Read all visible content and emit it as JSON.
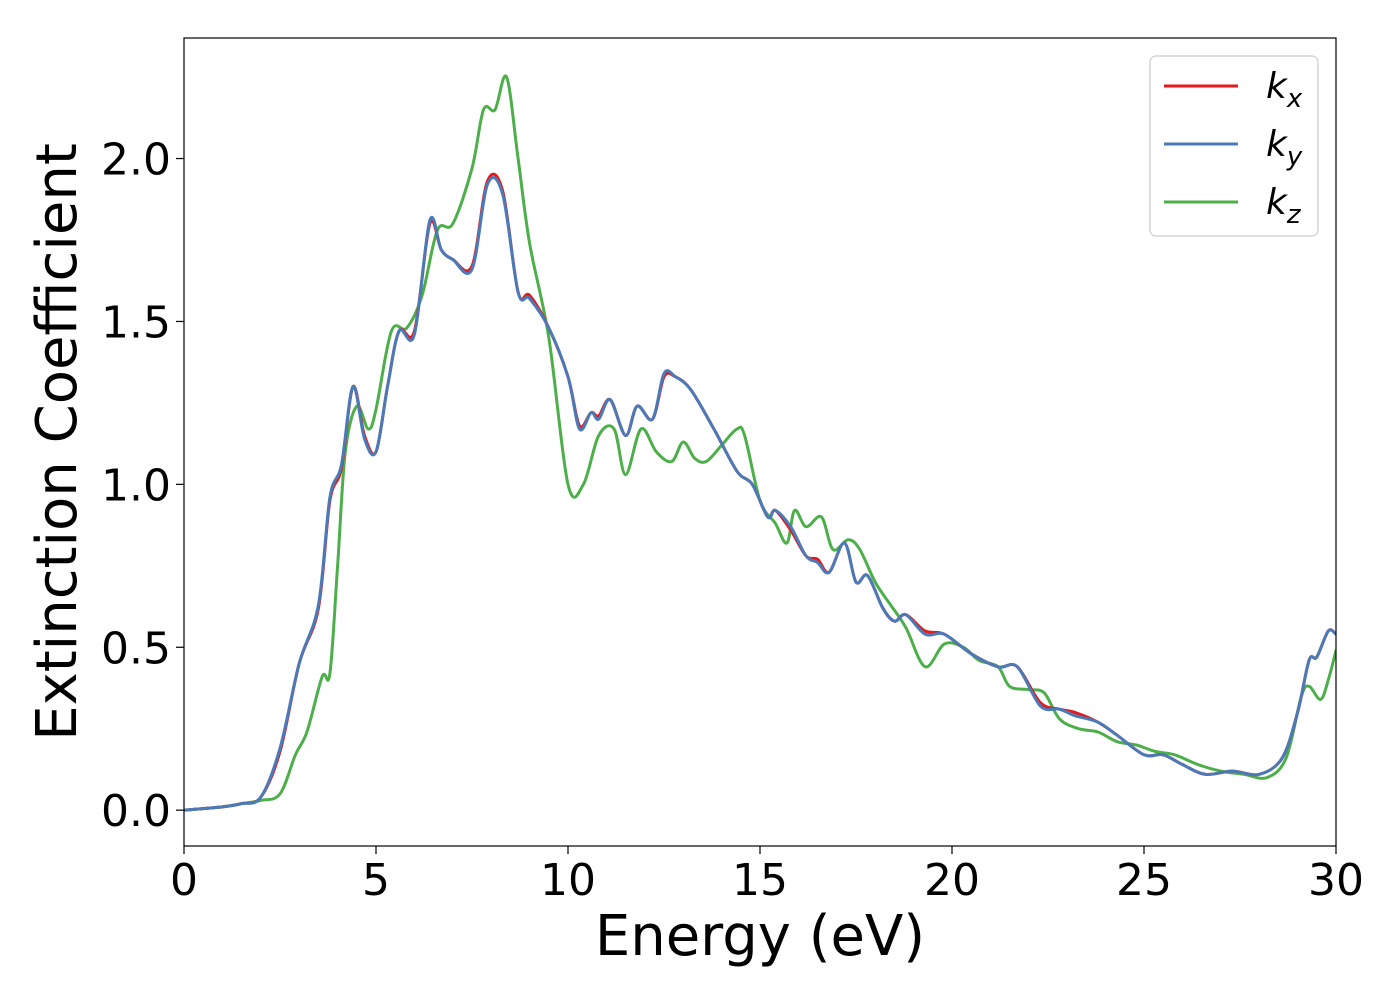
{
  "chart_data": {
    "type": "line",
    "xlabel": "Energy (eV)",
    "ylabel": "Extinction Coefficient",
    "xlim": [
      0,
      30
    ],
    "ylim": [
      -0.11,
      2.37
    ],
    "xticks": [
      0,
      5,
      10,
      15,
      20,
      25,
      30
    ],
    "xtick_labels": [
      "0",
      "5",
      "10",
      "15",
      "20",
      "25",
      "30"
    ],
    "yticks": [
      0.0,
      0.5,
      1.0,
      1.5,
      2.0
    ],
    "ytick_labels": [
      "0.0",
      "0.5",
      "1.0",
      "1.5",
      "2.0"
    ],
    "grid": false,
    "legend_position": "top-right",
    "series": [
      {
        "name": "k_x",
        "base": "k",
        "sub": "x",
        "color": "#e41a1c",
        "points": [
          [
            0,
            0
          ],
          [
            1,
            0.01
          ],
          [
            1.5,
            0.02
          ],
          [
            2,
            0.04
          ],
          [
            2.5,
            0.18
          ],
          [
            3,
            0.45
          ],
          [
            3.5,
            0.62
          ],
          [
            3.8,
            0.95
          ],
          [
            4.1,
            1.05
          ],
          [
            4.4,
            1.3
          ],
          [
            4.7,
            1.15
          ],
          [
            5,
            1.1
          ],
          [
            5.3,
            1.3
          ],
          [
            5.6,
            1.47
          ],
          [
            6,
            1.47
          ],
          [
            6.4,
            1.8
          ],
          [
            6.7,
            1.72
          ],
          [
            7,
            1.69
          ],
          [
            7.5,
            1.67
          ],
          [
            7.9,
            1.93
          ],
          [
            8.3,
            1.9
          ],
          [
            8.7,
            1.59
          ],
          [
            9,
            1.58
          ],
          [
            9.5,
            1.48
          ],
          [
            10,
            1.33
          ],
          [
            10.3,
            1.18
          ],
          [
            10.6,
            1.22
          ],
          [
            10.8,
            1.21
          ],
          [
            11.1,
            1.26
          ],
          [
            11.5,
            1.15
          ],
          [
            11.8,
            1.24
          ],
          [
            12.2,
            1.2
          ],
          [
            12.5,
            1.33
          ],
          [
            12.8,
            1.33
          ],
          [
            13.2,
            1.29
          ],
          [
            13.8,
            1.17
          ],
          [
            14.4,
            1.04
          ],
          [
            14.8,
            1.0
          ],
          [
            15.2,
            0.9
          ],
          [
            15.4,
            0.92
          ],
          [
            15.8,
            0.86
          ],
          [
            16.2,
            0.78
          ],
          [
            16.5,
            0.77
          ],
          [
            16.8,
            0.73
          ],
          [
            17.2,
            0.82
          ],
          [
            17.5,
            0.7
          ],
          [
            17.8,
            0.72
          ],
          [
            18.2,
            0.62
          ],
          [
            18.5,
            0.58
          ],
          [
            18.8,
            0.6
          ],
          [
            19.3,
            0.55
          ],
          [
            19.8,
            0.54
          ],
          [
            20.5,
            0.48
          ],
          [
            21.2,
            0.44
          ],
          [
            21.7,
            0.44
          ],
          [
            22.3,
            0.33
          ],
          [
            22.8,
            0.31
          ],
          [
            23.2,
            0.3
          ],
          [
            23.8,
            0.27
          ],
          [
            24.3,
            0.23
          ],
          [
            25,
            0.17
          ],
          [
            25.5,
            0.17
          ],
          [
            26,
            0.14
          ],
          [
            26.6,
            0.11
          ],
          [
            27.3,
            0.12
          ],
          [
            28,
            0.11
          ],
          [
            28.6,
            0.16
          ],
          [
            29,
            0.3
          ],
          [
            29.3,
            0.46
          ],
          [
            29.5,
            0.47
          ],
          [
            29.8,
            0.55
          ],
          [
            30,
            0.54
          ]
        ]
      },
      {
        "name": "k_y",
        "base": "k",
        "sub": "y",
        "color": "#4a7ab8",
        "points": [
          [
            0,
            0
          ],
          [
            1,
            0.01
          ],
          [
            1.5,
            0.02
          ],
          [
            2,
            0.04
          ],
          [
            2.5,
            0.19
          ],
          [
            3,
            0.45
          ],
          [
            3.5,
            0.63
          ],
          [
            3.8,
            0.96
          ],
          [
            4.1,
            1.06
          ],
          [
            4.4,
            1.3
          ],
          [
            4.7,
            1.14
          ],
          [
            5,
            1.1
          ],
          [
            5.3,
            1.3
          ],
          [
            5.6,
            1.47
          ],
          [
            6,
            1.46
          ],
          [
            6.4,
            1.81
          ],
          [
            6.7,
            1.72
          ],
          [
            7,
            1.69
          ],
          [
            7.5,
            1.66
          ],
          [
            7.9,
            1.92
          ],
          [
            8.3,
            1.89
          ],
          [
            8.7,
            1.59
          ],
          [
            9,
            1.57
          ],
          [
            9.5,
            1.48
          ],
          [
            10,
            1.33
          ],
          [
            10.3,
            1.17
          ],
          [
            10.6,
            1.22
          ],
          [
            10.8,
            1.2
          ],
          [
            11.1,
            1.26
          ],
          [
            11.5,
            1.15
          ],
          [
            11.8,
            1.24
          ],
          [
            12.2,
            1.2
          ],
          [
            12.5,
            1.34
          ],
          [
            12.8,
            1.33
          ],
          [
            13.2,
            1.29
          ],
          [
            13.8,
            1.17
          ],
          [
            14.4,
            1.04
          ],
          [
            14.8,
            1.0
          ],
          [
            15.2,
            0.9
          ],
          [
            15.4,
            0.92
          ],
          [
            15.8,
            0.87
          ],
          [
            16.2,
            0.78
          ],
          [
            16.5,
            0.76
          ],
          [
            16.8,
            0.73
          ],
          [
            17.2,
            0.82
          ],
          [
            17.5,
            0.7
          ],
          [
            17.8,
            0.72
          ],
          [
            18.2,
            0.62
          ],
          [
            18.5,
            0.58
          ],
          [
            18.8,
            0.6
          ],
          [
            19.3,
            0.54
          ],
          [
            19.8,
            0.54
          ],
          [
            20.5,
            0.48
          ],
          [
            21.2,
            0.44
          ],
          [
            21.7,
            0.44
          ],
          [
            22.3,
            0.32
          ],
          [
            22.8,
            0.31
          ],
          [
            23.2,
            0.29
          ],
          [
            23.8,
            0.27
          ],
          [
            24.3,
            0.23
          ],
          [
            25,
            0.17
          ],
          [
            25.5,
            0.17
          ],
          [
            26,
            0.14
          ],
          [
            26.6,
            0.11
          ],
          [
            27.3,
            0.12
          ],
          [
            28,
            0.11
          ],
          [
            28.6,
            0.16
          ],
          [
            29,
            0.3
          ],
          [
            29.3,
            0.46
          ],
          [
            29.5,
            0.47
          ],
          [
            29.8,
            0.55
          ],
          [
            30,
            0.54
          ]
        ]
      },
      {
        "name": "k_z",
        "base": "k",
        "sub": "z",
        "color": "#4daf4a",
        "points": [
          [
            0,
            0
          ],
          [
            1,
            0.01
          ],
          [
            1.5,
            0.02
          ],
          [
            2,
            0.03
          ],
          [
            2.5,
            0.05
          ],
          [
            2.9,
            0.17
          ],
          [
            3.2,
            0.24
          ],
          [
            3.6,
            0.41
          ],
          [
            3.8,
            0.42
          ],
          [
            4,
            0.75
          ],
          [
            4.2,
            1.1
          ],
          [
            4.5,
            1.24
          ],
          [
            4.8,
            1.17
          ],
          [
            5,
            1.23
          ],
          [
            5.4,
            1.47
          ],
          [
            5.8,
            1.48
          ],
          [
            6.2,
            1.58
          ],
          [
            6.6,
            1.78
          ],
          [
            7,
            1.8
          ],
          [
            7.5,
            1.97
          ],
          [
            7.8,
            2.15
          ],
          [
            8.1,
            2.15
          ],
          [
            8.4,
            2.25
          ],
          [
            8.7,
            2.0
          ],
          [
            9,
            1.74
          ],
          [
            9.5,
            1.45
          ],
          [
            10,
            1.0
          ],
          [
            10.4,
            1.0
          ],
          [
            10.8,
            1.15
          ],
          [
            11.2,
            1.17
          ],
          [
            11.5,
            1.03
          ],
          [
            11.9,
            1.17
          ],
          [
            12.3,
            1.1
          ],
          [
            12.7,
            1.07
          ],
          [
            13,
            1.13
          ],
          [
            13.3,
            1.08
          ],
          [
            13.6,
            1.07
          ],
          [
            14,
            1.12
          ],
          [
            14.4,
            1.17
          ],
          [
            14.6,
            1.15
          ],
          [
            15,
            0.95
          ],
          [
            15.4,
            0.88
          ],
          [
            15.7,
            0.82
          ],
          [
            15.9,
            0.92
          ],
          [
            16.2,
            0.87
          ],
          [
            16.6,
            0.9
          ],
          [
            16.9,
            0.8
          ],
          [
            17.3,
            0.83
          ],
          [
            17.6,
            0.8
          ],
          [
            18,
            0.7
          ],
          [
            18.4,
            0.63
          ],
          [
            18.8,
            0.56
          ],
          [
            19.3,
            0.44
          ],
          [
            19.8,
            0.51
          ],
          [
            20.3,
            0.5
          ],
          [
            20.7,
            0.46
          ],
          [
            21.2,
            0.44
          ],
          [
            21.5,
            0.38
          ],
          [
            22,
            0.37
          ],
          [
            22.4,
            0.36
          ],
          [
            22.8,
            0.28
          ],
          [
            23.3,
            0.25
          ],
          [
            23.8,
            0.24
          ],
          [
            24.3,
            0.21
          ],
          [
            24.8,
            0.2
          ],
          [
            25.3,
            0.18
          ],
          [
            25.8,
            0.17
          ],
          [
            26.4,
            0.14
          ],
          [
            27,
            0.12
          ],
          [
            27.6,
            0.11
          ],
          [
            28.2,
            0.1
          ],
          [
            28.7,
            0.16
          ],
          [
            29.1,
            0.35
          ],
          [
            29.3,
            0.38
          ],
          [
            29.6,
            0.34
          ],
          [
            29.8,
            0.4
          ],
          [
            30,
            0.49
          ]
        ]
      }
    ]
  }
}
